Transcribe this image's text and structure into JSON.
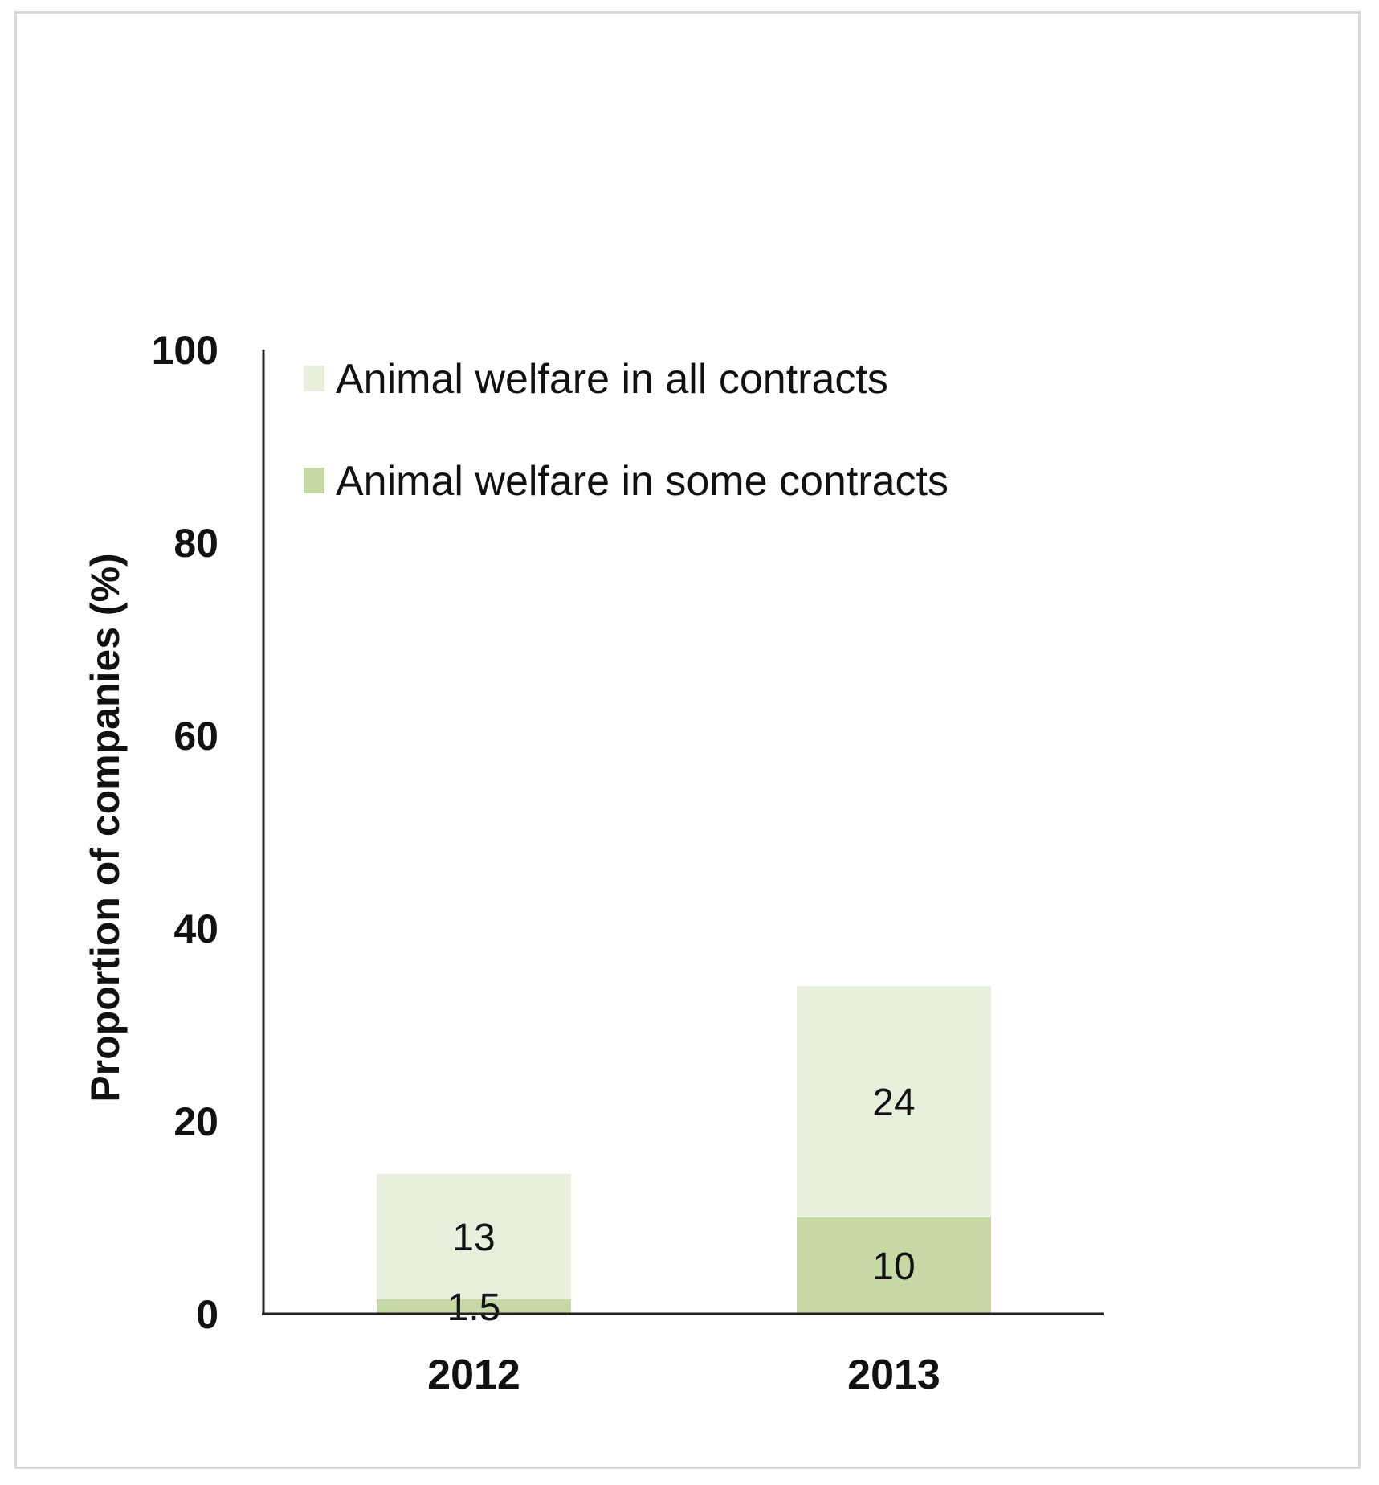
{
  "chart_data": {
    "type": "bar",
    "stacked": true,
    "categories": [
      "2012",
      "2013"
    ],
    "series": [
      {
        "name": "Animal welfare in some contracts",
        "values": [
          1.5,
          10
        ],
        "labels": [
          "1.5",
          "10"
        ],
        "color": "#c6d9a5"
      },
      {
        "name": "Animal welfare in all contracts",
        "values": [
          13,
          24
        ],
        "labels": [
          "13",
          "24"
        ],
        "color": "#e9efdd"
      }
    ],
    "title": "",
    "xlabel": "",
    "ylabel": "Proportion of companies (%)",
    "ylim": [
      0,
      100
    ],
    "yticks": [
      0,
      20,
      40,
      60,
      80,
      100
    ],
    "ytick_labels": [
      "0",
      "20",
      "40",
      "60",
      "80",
      "100"
    ],
    "legend_position": "top-left",
    "grid": false
  }
}
